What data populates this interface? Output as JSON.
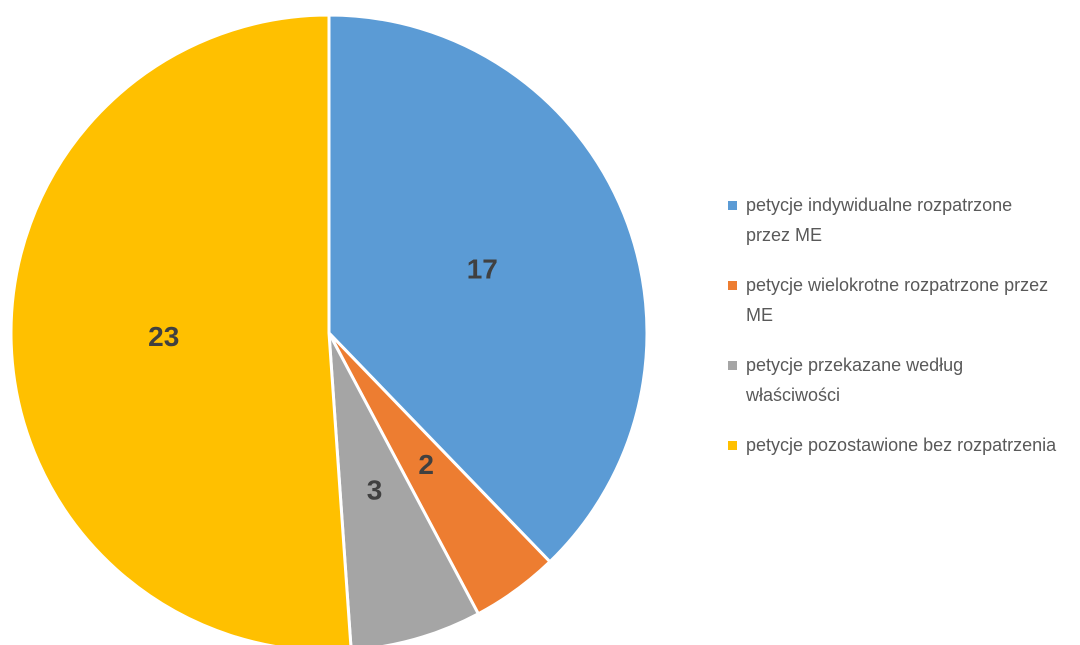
{
  "chart_data": {
    "type": "pie",
    "categories": [
      "petycje indywidualne rozpatrzone przez ME",
      "petycje wielokrotne rozpatrzone przez ME",
      "petycje przekazane według właściwości",
      "petycje pozostawione bez rozpatrzenia"
    ],
    "values": [
      17,
      2,
      3,
      23
    ],
    "colors": [
      "#5b9bd5",
      "#ed7d31",
      "#a5a5a5",
      "#ffc000"
    ],
    "legend": "right"
  }
}
